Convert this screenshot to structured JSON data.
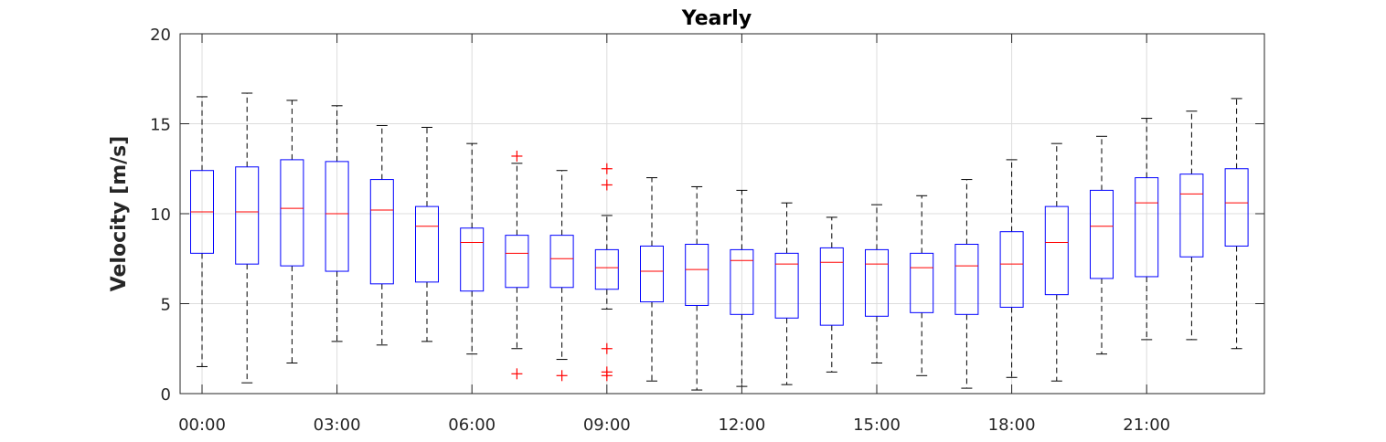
{
  "chart_data": {
    "type": "box",
    "title": "Yearly",
    "xlabel": "",
    "ylabel": "Velocity [m/s]",
    "ylim": [
      0,
      20
    ],
    "yticks": [
      0,
      5,
      10,
      15,
      20
    ],
    "xtick_labels": [
      "00:00",
      "03:00",
      "06:00",
      "09:00",
      "12:00",
      "15:00",
      "18:00",
      "21:00"
    ],
    "grid": true,
    "categories": [
      "00:00",
      "01:00",
      "02:00",
      "03:00",
      "04:00",
      "05:00",
      "06:00",
      "07:00",
      "08:00",
      "09:00",
      "10:00",
      "11:00",
      "12:00",
      "13:00",
      "14:00",
      "15:00",
      "16:00",
      "17:00",
      "18:00",
      "19:00",
      "20:00",
      "21:00",
      "22:00",
      "23:00"
    ],
    "boxes": [
      {
        "whisker_low": 1.5,
        "q1": 7.8,
        "median": 10.1,
        "q3": 12.4,
        "whisker_high": 16.5,
        "outliers": []
      },
      {
        "whisker_low": 0.6,
        "q1": 7.2,
        "median": 10.1,
        "q3": 12.6,
        "whisker_high": 16.7,
        "outliers": []
      },
      {
        "whisker_low": 1.7,
        "q1": 7.1,
        "median": 10.3,
        "q3": 13.0,
        "whisker_high": 16.3,
        "outliers": []
      },
      {
        "whisker_low": 2.9,
        "q1": 6.8,
        "median": 10.0,
        "q3": 12.9,
        "whisker_high": 16.0,
        "outliers": []
      },
      {
        "whisker_low": 2.7,
        "q1": 6.1,
        "median": 10.2,
        "q3": 11.9,
        "whisker_high": 14.9,
        "outliers": []
      },
      {
        "whisker_low": 2.9,
        "q1": 6.2,
        "median": 9.3,
        "q3": 10.4,
        "whisker_high": 14.8,
        "outliers": []
      },
      {
        "whisker_low": 2.2,
        "q1": 5.7,
        "median": 8.4,
        "q3": 9.2,
        "whisker_high": 13.9,
        "outliers": []
      },
      {
        "whisker_low": 2.5,
        "q1": 5.9,
        "median": 7.8,
        "q3": 8.8,
        "whisker_high": 12.8,
        "outliers": [
          13.2,
          1.1
        ]
      },
      {
        "whisker_low": 1.9,
        "q1": 5.9,
        "median": 7.5,
        "q3": 8.8,
        "whisker_high": 12.4,
        "outliers": [
          1.0
        ]
      },
      {
        "whisker_low": 4.7,
        "q1": 5.8,
        "median": 7.0,
        "q3": 8.0,
        "whisker_high": 9.9,
        "outliers": [
          12.5,
          11.6,
          2.5,
          1.2,
          1.0
        ]
      },
      {
        "whisker_low": 0.7,
        "q1": 5.1,
        "median": 6.8,
        "q3": 8.2,
        "whisker_high": 12.0,
        "outliers": []
      },
      {
        "whisker_low": 0.2,
        "q1": 4.9,
        "median": 6.9,
        "q3": 8.3,
        "whisker_high": 11.5,
        "outliers": []
      },
      {
        "whisker_low": 0.4,
        "q1": 4.4,
        "median": 7.4,
        "q3": 8.0,
        "whisker_high": 11.3,
        "outliers": []
      },
      {
        "whisker_low": 0.5,
        "q1": 4.2,
        "median": 7.2,
        "q3": 7.8,
        "whisker_high": 10.6,
        "outliers": []
      },
      {
        "whisker_low": 1.2,
        "q1": 3.8,
        "median": 7.3,
        "q3": 8.1,
        "whisker_high": 9.8,
        "outliers": []
      },
      {
        "whisker_low": 1.7,
        "q1": 4.3,
        "median": 7.2,
        "q3": 8.0,
        "whisker_high": 10.5,
        "outliers": []
      },
      {
        "whisker_low": 1.0,
        "q1": 4.5,
        "median": 7.0,
        "q3": 7.8,
        "whisker_high": 11.0,
        "outliers": []
      },
      {
        "whisker_low": 0.3,
        "q1": 4.4,
        "median": 7.1,
        "q3": 8.3,
        "whisker_high": 11.9,
        "outliers": []
      },
      {
        "whisker_low": 0.9,
        "q1": 4.8,
        "median": 7.2,
        "q3": 9.0,
        "whisker_high": 13.0,
        "outliers": []
      },
      {
        "whisker_low": 0.7,
        "q1": 5.5,
        "median": 8.4,
        "q3": 10.4,
        "whisker_high": 13.9,
        "outliers": []
      },
      {
        "whisker_low": 2.2,
        "q1": 6.4,
        "median": 9.3,
        "q3": 11.3,
        "whisker_high": 14.3,
        "outliers": []
      },
      {
        "whisker_low": 3.0,
        "q1": 6.5,
        "median": 10.6,
        "q3": 12.0,
        "whisker_high": 15.3,
        "outliers": []
      },
      {
        "whisker_low": 3.0,
        "q1": 7.6,
        "median": 11.1,
        "q3": 12.2,
        "whisker_high": 15.7,
        "outliers": []
      },
      {
        "whisker_low": 2.5,
        "q1": 8.2,
        "median": 10.6,
        "q3": 12.5,
        "whisker_high": 16.4,
        "outliers": []
      }
    ],
    "colors": {
      "box": "#0000ff",
      "median": "#ff0000",
      "whisker": "#000000",
      "outlier": "#ff0000",
      "grid": "#dcdcdc",
      "axis": "#262626"
    }
  }
}
